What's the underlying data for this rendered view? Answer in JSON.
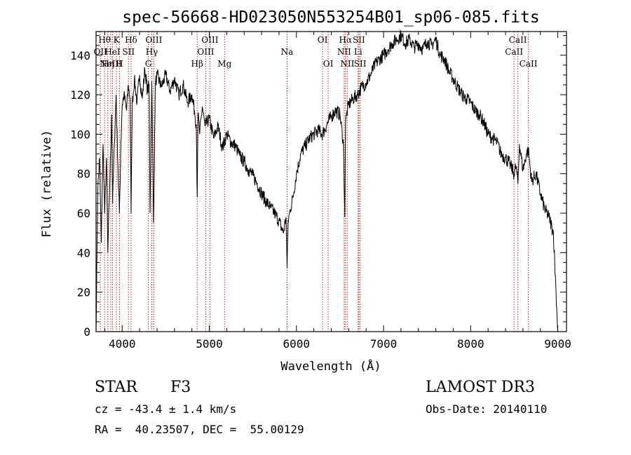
{
  "chart_data": {
    "type": "line",
    "title": "spec-56668-HD023050N553254B01_sp06-085.fits",
    "xlabel": "Wavelength (Å)",
    "ylabel": "Flux (relative)",
    "xlim": [
      3700,
      9100
    ],
    "ylim": [
      0,
      152
    ],
    "xticks": [
      4000,
      5000,
      6000,
      7000,
      8000,
      9000
    ],
    "yticks": [
      0,
      20,
      40,
      60,
      80,
      100,
      120,
      140
    ],
    "grid": false,
    "series": [
      {
        "color": "#000000",
        "x": [
          3700,
          3720,
          3740,
          3760,
          3780,
          3800,
          3820,
          3835,
          3860,
          3880,
          3890,
          3910,
          3930,
          3950,
          3968,
          3985,
          4000,
          4020,
          4050,
          4070,
          4090,
          4102,
          4115,
          4140,
          4170,
          4200,
          4230,
          4260,
          4290,
          4310,
          4320,
          4340,
          4360,
          4380,
          4400,
          4450,
          4500,
          4550,
          4600,
          4650,
          4700,
          4750,
          4800,
          4830,
          4850,
          4861,
          4870,
          4890,
          4920,
          4950,
          5000,
          5050,
          5100,
          5150,
          5200,
          5250,
          5300,
          5350,
          5400,
          5450,
          5500,
          5550,
          5600,
          5650,
          5700,
          5750,
          5800,
          5850,
          5880,
          5893,
          5905,
          5930,
          5960,
          6000,
          6050,
          6100,
          6150,
          6200,
          6250,
          6300,
          6350,
          6400,
          6450,
          6500,
          6540,
          6555,
          6563,
          6575,
          6600,
          6650,
          6700,
          6750,
          6800,
          6850,
          6900,
          6950,
          7000,
          7050,
          7100,
          7150,
          7200,
          7250,
          7300,
          7350,
          7400,
          7450,
          7500,
          7550,
          7600,
          7650,
          7700,
          7750,
          7800,
          7850,
          7900,
          7950,
          8000,
          8050,
          8100,
          8150,
          8200,
          8250,
          8300,
          8350,
          8400,
          8450,
          8498,
          8520,
          8542,
          8560,
          8600,
          8640,
          8662,
          8700,
          8750,
          8800,
          8850,
          8900,
          8950,
          8980,
          9000
        ],
        "y": [
          0,
          72,
          88,
          45,
          95,
          60,
          88,
          40,
          80,
          110,
          65,
          95,
          120,
          85,
          60,
          95,
          115,
          120,
          112,
          125,
          118,
          60,
          115,
          128,
          116,
          130,
          118,
          133,
          122,
          125,
          60,
          127,
          55,
          125,
          130,
          124,
          130,
          122,
          128,
          120,
          125,
          116,
          120,
          112,
          105,
          68,
          110,
          100,
          114,
          104,
          108,
          98,
          104,
          93,
          100,
          96,
          94,
          89,
          86,
          82,
          79,
          75,
          70,
          66,
          63,
          60,
          56,
          50,
          58,
          32,
          56,
          62,
          68,
          80,
          90,
          94,
          98,
          100,
          102,
          100,
          105,
          109,
          112,
          110,
          95,
          58,
          105,
          110,
          115,
          118,
          120,
          124,
          126,
          130,
          135,
          138,
          140,
          143,
          146,
          148,
          150,
          146,
          148,
          144,
          146,
          143,
          147,
          145,
          148,
          140,
          138,
          132,
          128,
          124,
          120,
          118,
          116,
          112,
          110,
          106,
          100,
          98,
          96,
          90,
          88,
          85,
          80,
          84,
          75,
          95,
          82,
          90,
          92,
          76,
          80,
          70,
          62,
          58,
          50,
          20,
          0
        ]
      }
    ],
    "lines": [
      {
        "wave": 3750,
        "label": "OII",
        "row": 1
      },
      {
        "wave": 3798,
        "label": "Hθ",
        "row": 0
      },
      {
        "wave": 3835,
        "label": "Hη",
        "row": 2
      },
      {
        "wave": 3869,
        "label": "NeIII",
        "row": 2
      },
      {
        "wave": 3889,
        "label": "HeI",
        "row": 1
      },
      {
        "wave": 3934,
        "label": "K",
        "row": 0
      },
      {
        "wave": 3969,
        "label": "H",
        "row": 2
      },
      {
        "wave": 4072,
        "label": "SII",
        "row": 1
      },
      {
        "wave": 4102,
        "label": "Hδ",
        "row": 0
      },
      {
        "wave": 4300,
        "label": "G",
        "row": 2
      },
      {
        "wave": 4340,
        "label": "Hγ",
        "row": 1
      },
      {
        "wave": 4363,
        "label": "OIII",
        "row": 0
      },
      {
        "wave": 4861,
        "label": "Hβ",
        "row": 2
      },
      {
        "wave": 4959,
        "label": "OIII",
        "row": 1
      },
      {
        "wave": 5007,
        "label": "OIII",
        "row": 0
      },
      {
        "wave": 5175,
        "label": "Mg",
        "row": 2
      },
      {
        "wave": 5893,
        "label": "Na",
        "row": 1
      },
      {
        "wave": 6300,
        "label": "OI",
        "row": 0
      },
      {
        "wave": 6364,
        "label": "OI",
        "row": 2
      },
      {
        "wave": 6548,
        "label": "NII",
        "row": 1
      },
      {
        "wave": 6563,
        "label": "Hα",
        "row": 0
      },
      {
        "wave": 6584,
        "label": "NII",
        "row": 2
      },
      {
        "wave": 6708,
        "label": "Li",
        "row": 1
      },
      {
        "wave": 6717,
        "label": "SII",
        "row": 0
      },
      {
        "wave": 6731,
        "label": "SII",
        "row": 2
      },
      {
        "wave": 8498,
        "label": "CaII",
        "row": 1
      },
      {
        "wave": 8542,
        "label": "CaII",
        "row": 0
      },
      {
        "wave": 8662,
        "label": "CaII",
        "row": 2
      }
    ],
    "line_color": "#cc2222"
  },
  "info": {
    "class_label": "STAR",
    "subclass": "F3",
    "survey": "LAMOST DR3",
    "cz": "cz = -43.4 ± 1.4 km/s",
    "obs_date": "Obs-Date: 20140110",
    "radec": "RA =  40.23507, DEC =  55.00129"
  }
}
